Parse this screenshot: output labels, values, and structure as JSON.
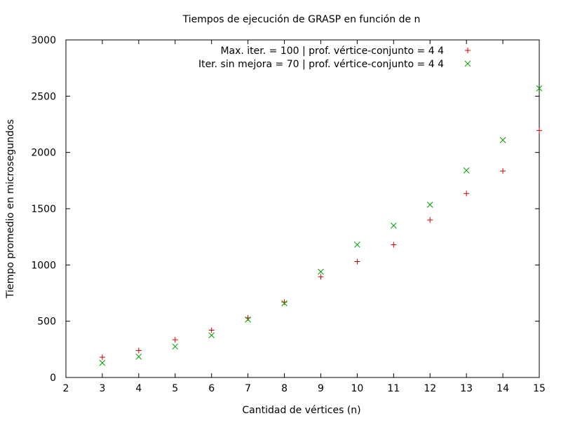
{
  "chart_data": {
    "type": "scatter",
    "title": "Tiempos de ejecución de GRASP en función de n",
    "xlabel": "Cantidad de vértices (n)",
    "ylabel": "Tiempo promedio en microsegundos",
    "xlim": [
      2,
      15
    ],
    "ylim": [
      0,
      3000
    ],
    "xticks": [
      2,
      3,
      4,
      5,
      6,
      7,
      8,
      9,
      10,
      11,
      12,
      13,
      14,
      15
    ],
    "yticks": [
      0,
      500,
      1000,
      1500,
      2000,
      2500,
      3000
    ],
    "grid": false,
    "legend_position": "top-right",
    "series": [
      {
        "name": "Max. iter. = 100 | prof. vértice-conjunto = 4 4",
        "marker": "plus",
        "color": "#cc0000",
        "x": [
          3,
          4,
          5,
          6,
          7,
          8,
          9,
          10,
          11,
          12,
          13,
          14,
          15
        ],
        "y": [
          180,
          240,
          335,
          420,
          530,
          670,
          895,
          1030,
          1180,
          1400,
          1635,
          1835,
          2195
        ]
      },
      {
        "name": "Iter. sin mejora = 70 | prof. vértice-conjunto = 4 4",
        "marker": "cross",
        "color": "#00a000",
        "x": [
          3,
          4,
          5,
          6,
          7,
          8,
          9,
          10,
          11,
          12,
          13,
          14,
          15
        ],
        "y": [
          130,
          185,
          275,
          375,
          515,
          660,
          940,
          1180,
          1350,
          1535,
          1840,
          2110,
          2570
        ]
      }
    ]
  }
}
